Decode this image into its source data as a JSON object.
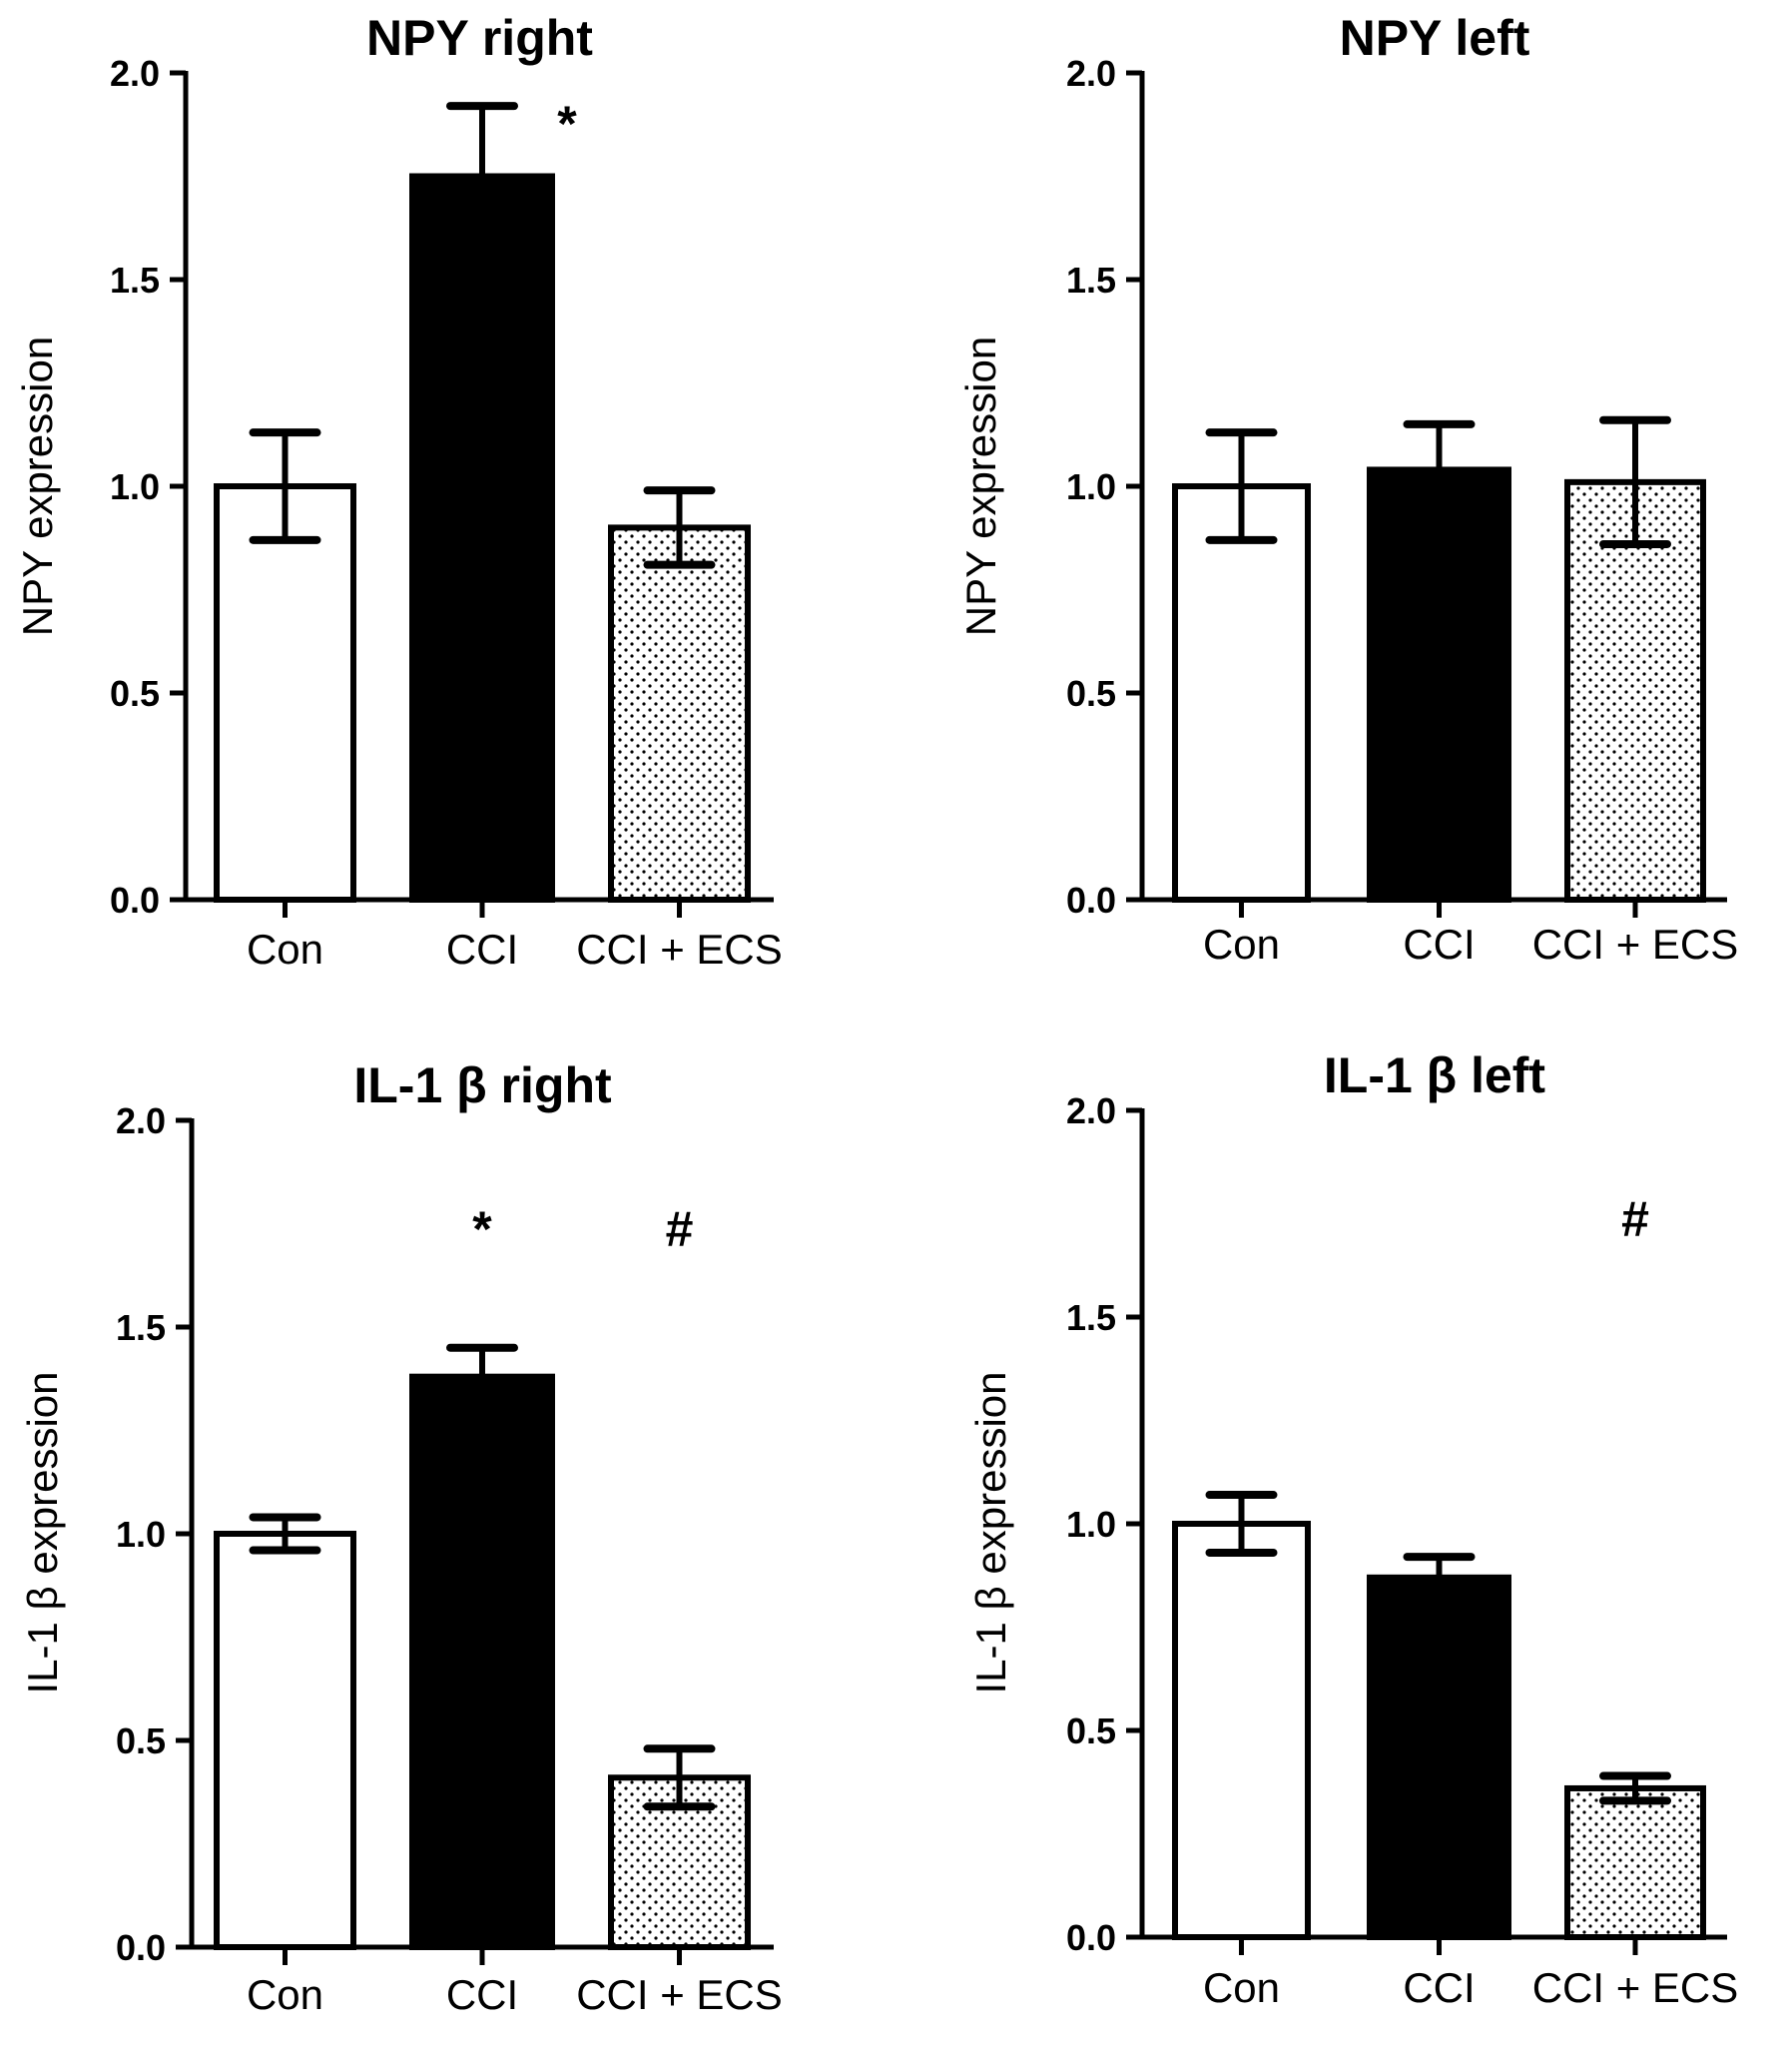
{
  "chart_data": [
    {
      "type": "bar",
      "title": "NPY right",
      "ylabel": "NPY expression",
      "xlabel": "",
      "ylim": [
        0,
        2.0
      ],
      "yticks": [
        "0.0",
        "0.5",
        "1.0",
        "1.5",
        "2.0"
      ],
      "categories": [
        "Con",
        "CCI",
        "CCI + ECS"
      ],
      "values": [
        1.0,
        1.75,
        0.9
      ],
      "errors": [
        0.13,
        0.17,
        0.09
      ],
      "annotations": [
        {
          "category": "CCI",
          "text": "*"
        }
      ]
    },
    {
      "type": "bar",
      "title": "NPY left",
      "ylabel": "NPY expression",
      "xlabel": "",
      "ylim": [
        0,
        2.0
      ],
      "yticks": [
        "0.0",
        "0.5",
        "1.0",
        "1.5",
        "2.0"
      ],
      "categories": [
        "Con",
        "CCI",
        "CCI + ECS"
      ],
      "values": [
        1.0,
        1.04,
        1.01
      ],
      "errors": [
        0.13,
        0.11,
        0.15
      ],
      "annotations": []
    },
    {
      "type": "bar",
      "title": "IL-1 β right",
      "ylabel": "IL-1 β expression",
      "xlabel": "",
      "ylim": [
        0,
        2.0
      ],
      "yticks": [
        "0.0",
        "0.5",
        "1.0",
        "1.5",
        "2.0"
      ],
      "categories": [
        "Con",
        "CCI",
        "CCI + ECS"
      ],
      "values": [
        1.0,
        1.38,
        0.41
      ],
      "errors": [
        0.04,
        0.07,
        0.07
      ],
      "annotations": [
        {
          "category": "CCI",
          "text": "*"
        },
        {
          "category": "CCI + ECS",
          "text": "#"
        }
      ]
    },
    {
      "type": "bar",
      "title": "IL-1 β left",
      "ylabel": "IL-1 β expression",
      "xlabel": "",
      "ylim": [
        0,
        2.0
      ],
      "yticks": [
        "0.0",
        "0.5",
        "1.0",
        "1.5",
        "2.0"
      ],
      "categories": [
        "Con",
        "CCI",
        "CCI + ECS"
      ],
      "values": [
        1.0,
        0.87,
        0.36
      ],
      "errors": [
        0.07,
        0.05,
        0.03
      ],
      "annotations": [
        {
          "category": "CCI + ECS",
          "text": "#"
        }
      ]
    }
  ],
  "fills": [
    "#ffffff",
    "#000000",
    "dots"
  ]
}
